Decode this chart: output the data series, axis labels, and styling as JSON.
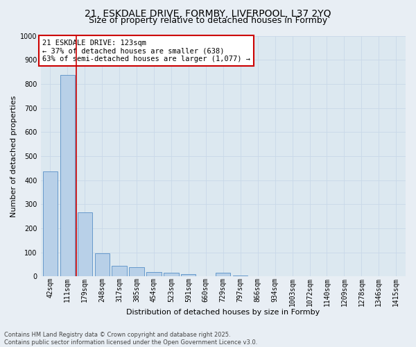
{
  "title_line1": "21, ESKDALE DRIVE, FORMBY, LIVERPOOL, L37 2YQ",
  "title_line2": "Size of property relative to detached houses in Formby",
  "xlabel": "Distribution of detached houses by size in Formby",
  "ylabel": "Number of detached properties",
  "categories": [
    "42sqm",
    "111sqm",
    "179sqm",
    "248sqm",
    "317sqm",
    "385sqm",
    "454sqm",
    "523sqm",
    "591sqm",
    "660sqm",
    "729sqm",
    "797sqm",
    "866sqm",
    "934sqm",
    "1003sqm",
    "1072sqm",
    "1140sqm",
    "1209sqm",
    "1278sqm",
    "1346sqm",
    "1415sqm"
  ],
  "values": [
    435,
    838,
    265,
    95,
    43,
    38,
    18,
    16,
    10,
    2,
    15,
    5,
    0,
    0,
    0,
    0,
    0,
    0,
    0,
    0,
    2
  ],
  "bar_color": "#b8d0e8",
  "bar_edge_color": "#6699cc",
  "vline_x": 1.5,
  "vline_color": "#cc0000",
  "annotation_text": "21 ESKDALE DRIVE: 123sqm\n← 37% of detached houses are smaller (638)\n63% of semi-detached houses are larger (1,077) →",
  "annotation_box_color": "#ffffff",
  "annotation_box_edge": "#cc0000",
  "ylim": [
    0,
    1000
  ],
  "yticks": [
    0,
    100,
    200,
    300,
    400,
    500,
    600,
    700,
    800,
    900,
    1000
  ],
  "grid_color": "#c8d8e8",
  "bg_outer": "#e8eef4",
  "bg_inner": "#dce8f0",
  "footer_text": "Contains HM Land Registry data © Crown copyright and database right 2025.\nContains public sector information licensed under the Open Government Licence v3.0.",
  "title_fontsize": 10,
  "subtitle_fontsize": 9,
  "axis_label_fontsize": 8,
  "tick_fontsize": 7,
  "annotation_fontsize": 7.5,
  "footer_fontsize": 6
}
